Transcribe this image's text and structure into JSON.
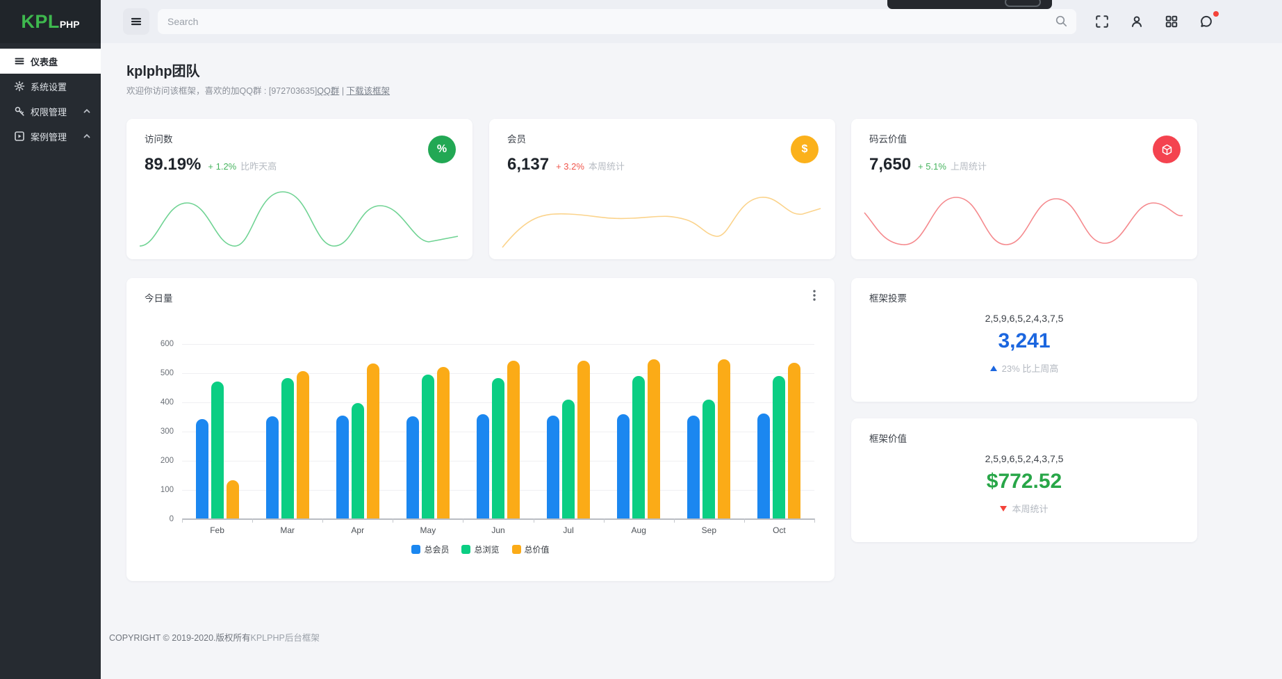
{
  "brand": {
    "name_primary": "KPL",
    "name_secondary": "PHP",
    "accent_green": "#3eb84e"
  },
  "sidebar": {
    "items": [
      {
        "label": "仪表盘",
        "icon": "menu-list-icon",
        "active": true
      },
      {
        "label": "系统设置",
        "icon": "gear-icon",
        "active": false
      },
      {
        "label": "权限管理",
        "icon": "key-icon",
        "active": false,
        "chevron": "up"
      },
      {
        "label": "案例管理",
        "icon": "play-square-icon",
        "active": false,
        "chevron": "up"
      }
    ]
  },
  "topbar": {
    "search_placeholder": "Search",
    "icons": [
      "search-icon",
      "fullscreen-icon",
      "user-icon",
      "apps-grid-icon",
      "message-icon"
    ],
    "notification_dot_color": "#f4433a"
  },
  "page": {
    "title": "kplphp团队",
    "welcome_prefix": "欢迎你访问该框架，喜欢的加QQ群 : [972703635]",
    "link_qq": "QQ群",
    "separator": " | ",
    "link_download": "下载该框架"
  },
  "stat_cards": [
    {
      "title": "访问数",
      "value": "89.19%",
      "change": "+ 1.2%",
      "change_color": "#47b45f",
      "note": "比昨天高",
      "badge_glyph": "%",
      "badge_color": "#22a854",
      "spark_color": "#6fd393"
    },
    {
      "title": "会员",
      "value": "6,137",
      "change": "+ 3.2%",
      "change_color": "#f0564c",
      "note": "本周统计",
      "badge_glyph": "$",
      "badge_color": "#fbb11b",
      "spark_color": "#fbd38b"
    },
    {
      "title": "码云价值",
      "value": "7,650",
      "change": "+ 5.1%",
      "change_color": "#47b45f",
      "note": "上周统计",
      "badge_glyph": "",
      "badge_icon": "cube-icon",
      "badge_color": "#f4434f",
      "spark_color": "#f5898d"
    }
  ],
  "chart_card": {
    "title": "今日量",
    "menu_icon": "kebab-menu-icon"
  },
  "chart_data": {
    "type": "bar",
    "title": "今日量",
    "categories": [
      "Feb",
      "Mar",
      "Apr",
      "May",
      "Jun",
      "Jul",
      "Aug",
      "Sep",
      "Oct"
    ],
    "series": [
      {
        "name": "总会员",
        "color": "#1b87f0",
        "values": [
          340,
          350,
          352,
          350,
          357,
          352,
          358,
          352,
          360
        ]
      },
      {
        "name": "总浏览",
        "color": "#0bce83",
        "values": [
          470,
          480,
          395,
          492,
          482,
          408,
          487,
          408,
          488
        ]
      },
      {
        "name": "总价值",
        "color": "#fbab17",
        "values": [
          130,
          505,
          530,
          520,
          540,
          540,
          545,
          545,
          533
        ]
      }
    ],
    "ylim": [
      0,
      600
    ],
    "yticks": [
      0,
      100,
      200,
      300,
      400,
      500,
      600
    ],
    "grid": true,
    "legend_position": "bottom"
  },
  "vote_card": {
    "title": "框架投票",
    "sequence": "2,5,9,6,5,2,4,3,7,5",
    "value": "3,241",
    "value_color": "#1b66df",
    "trend": "up",
    "note": "23% 比上周高"
  },
  "value_card": {
    "title": "框架价值",
    "sequence": "2,5,9,6,5,2,4,3,7,5",
    "value": "$772.52",
    "value_color": "#28a648",
    "trend": "down",
    "note": "本周统计"
  },
  "footer": {
    "copyright": "COPYRIGHT © 2019-2020.版权所有",
    "brand_link": "KPLPHP后台框架"
  }
}
